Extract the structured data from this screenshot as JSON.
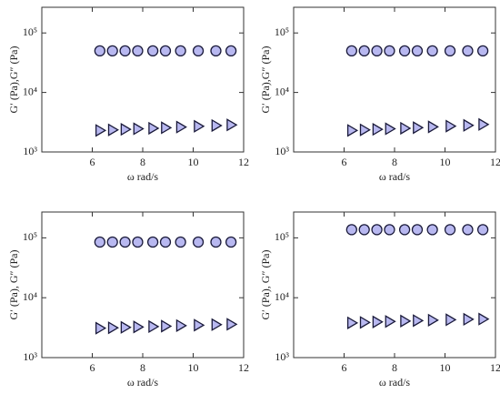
{
  "chart_data": [
    {
      "type": "scatter",
      "ylabel": "G′ (Pa),G″ (Pa)",
      "xlabel": "ω rad/s",
      "log_y": true,
      "xlim": [
        4,
        12
      ],
      "xticks": [
        6,
        8,
        10,
        12
      ],
      "ylim": [
        1000,
        270000
      ],
      "yticks": [
        {
          "value": 1000,
          "label": "10³"
        },
        {
          "value": 10000,
          "label": "10⁴"
        },
        {
          "value": 100000,
          "label": "10⁵"
        }
      ],
      "x": [
        6.3,
        6.8,
        7.3,
        7.8,
        8.4,
        8.9,
        9.5,
        10.2,
        10.9,
        11.5
      ],
      "series": [
        {
          "marker": "circle",
          "color": "#b8b8f0",
          "values": [
            50000,
            50000,
            50000,
            50000,
            50000,
            50000,
            50000,
            50000,
            50000,
            50000
          ]
        },
        {
          "marker": "triangle",
          "color": "#b8b8f0",
          "values": [
            2300,
            2350,
            2400,
            2450,
            2500,
            2550,
            2620,
            2700,
            2780,
            2850
          ]
        }
      ]
    },
    {
      "type": "scatter",
      "ylabel": "G′ (Pa),G″ (Pa)",
      "xlabel": "ω rad/s",
      "log_y": true,
      "xlim": [
        4,
        12
      ],
      "xticks": [
        6,
        8,
        10,
        12
      ],
      "ylim": [
        1000,
        270000
      ],
      "yticks": [
        {
          "value": 1000,
          "label": "10³"
        },
        {
          "value": 10000,
          "label": "10⁴"
        },
        {
          "value": 100000,
          "label": "10⁵"
        }
      ],
      "x": [
        6.3,
        6.8,
        7.3,
        7.8,
        8.4,
        8.9,
        9.5,
        10.2,
        10.9,
        11.5
      ],
      "series": [
        {
          "marker": "circle",
          "color": "#b8b8f0",
          "values": [
            50000,
            50000,
            50000,
            50000,
            50000,
            50000,
            50000,
            50000,
            50000,
            50000
          ]
        },
        {
          "marker": "triangle",
          "color": "#b8b8f0",
          "values": [
            2300,
            2350,
            2400,
            2450,
            2500,
            2560,
            2640,
            2720,
            2800,
            2900
          ]
        }
      ]
    },
    {
      "type": "scatter",
      "ylabel": "G′ (Pa), G″ (Pa)",
      "xlabel": "ω rad/s",
      "log_y": true,
      "xlim": [
        4,
        12
      ],
      "xticks": [
        6,
        8,
        10,
        12
      ],
      "ylim": [
        1000,
        270000
      ],
      "yticks": [
        {
          "value": 1000,
          "label": "10³"
        },
        {
          "value": 10000,
          "label": "10⁴"
        },
        {
          "value": 100000,
          "label": "10⁵"
        }
      ],
      "x": [
        6.3,
        6.8,
        7.3,
        7.8,
        8.4,
        8.9,
        9.5,
        10.2,
        10.9,
        11.5
      ],
      "series": [
        {
          "marker": "circle",
          "color": "#b8b8f0",
          "values": [
            85000,
            85000,
            85000,
            85000,
            85000,
            85000,
            85000,
            85000,
            85000,
            85000
          ]
        },
        {
          "marker": "triangle",
          "color": "#b8b8f0",
          "values": [
            3100,
            3150,
            3200,
            3250,
            3300,
            3350,
            3420,
            3480,
            3550,
            3600
          ]
        }
      ]
    },
    {
      "type": "scatter",
      "ylabel": "G′ (Pa), G″ (Pa)",
      "xlabel": "ω rad/s",
      "log_y": true,
      "xlim": [
        4,
        12
      ],
      "xticks": [
        6,
        8,
        10,
        12
      ],
      "ylim": [
        1000,
        270000
      ],
      "yticks": [
        {
          "value": 1000,
          "label": "10³"
        },
        {
          "value": 10000,
          "label": "10⁴"
        },
        {
          "value": 100000,
          "label": "10⁵"
        }
      ],
      "x": [
        6.3,
        6.8,
        7.3,
        7.8,
        8.4,
        8.9,
        9.5,
        10.2,
        10.9,
        11.5
      ],
      "series": [
        {
          "marker": "circle",
          "color": "#b8b8f0",
          "values": [
            137000,
            137000,
            137000,
            137000,
            137000,
            137000,
            137000,
            137000,
            137000,
            137000
          ]
        },
        {
          "marker": "triangle",
          "color": "#b8b8f0",
          "values": [
            3800,
            3870,
            3940,
            4010,
            4080,
            4150,
            4220,
            4290,
            4360,
            4400
          ]
        }
      ]
    }
  ]
}
